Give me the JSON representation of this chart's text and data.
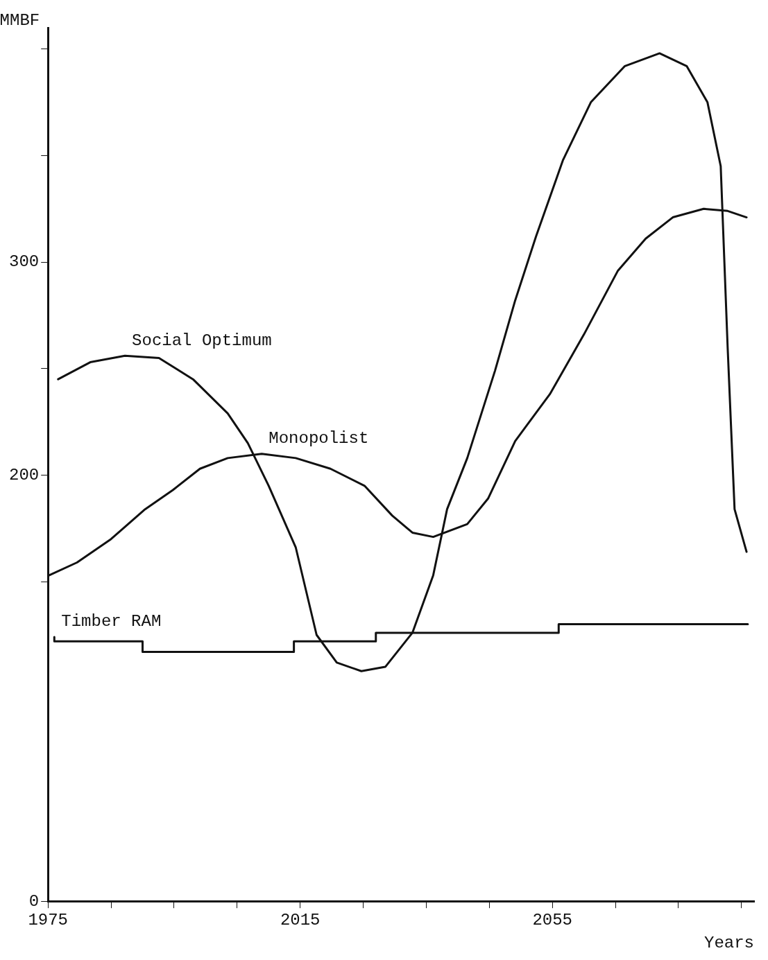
{
  "chart_data": {
    "type": "line",
    "ylabel": "MMBF",
    "xlabel": "Years",
    "xlim": [
      1975,
      2087
    ],
    "xticks": [
      1975,
      {
        "value": 1985,
        "label": null
      },
      {
        "value": 1995,
        "label": null
      },
      {
        "value": 2005,
        "label": null
      },
      2015,
      {
        "value": 2025,
        "label": null
      },
      {
        "value": 2035,
        "label": null
      },
      {
        "value": 2045,
        "label": null
      },
      2055,
      {
        "value": 2065,
        "label": null
      },
      {
        "value": 2075,
        "label": null
      },
      {
        "value": 2085,
        "label": null
      }
    ],
    "ylim": [
      0,
      410
    ],
    "yticks": [
      0,
      {
        "value": 150,
        "label": null
      },
      200,
      {
        "value": 250,
        "label": null
      },
      300,
      {
        "value": 350,
        "label": null
      },
      {
        "value": 400,
        "label": null
      }
    ],
    "grid": false,
    "legend": false,
    "marker": "none",
    "line_style": "solid",
    "series": [
      {
        "name": "Social Optimum",
        "color": "#111111",
        "x": [
          1976.6,
          1981.7,
          1987.2,
          1992.6,
          1998,
          2003.5,
          2006.7,
          2010,
          2014.3,
          2017.6,
          2020.8,
          2024.7,
          2028.5,
          2032.8,
          2036.1,
          2038.3,
          2041.5,
          2045.9,
          2049.1,
          2052.4,
          2056.7,
          2061.1,
          2066.5,
          2072,
          2076.3,
          2079.6,
          2081.7,
          2082.8,
          2083.9,
          2085.8
        ],
        "values": [
          245,
          253,
          256,
          255,
          245,
          229,
          215,
          195,
          166,
          125,
          112,
          108,
          110,
          126,
          153,
          184,
          208,
          249,
          282,
          312,
          348,
          375,
          392,
          398,
          392,
          375,
          345,
          260,
          184,
          164
        ]
      },
      {
        "name": "Monopolist",
        "color": "#111111",
        "x": [
          1975.2,
          1979.6,
          1985,
          1990.4,
          1994.8,
          1999.1,
          2003.5,
          2008.9,
          2014.3,
          2019.8,
          2025.2,
          2029.6,
          2032.8,
          2036.1,
          2041.5,
          2044.8,
          2049.1,
          2054.6,
          2060,
          2065.4,
          2069.8,
          2074.1,
          2079,
          2082.8,
          2085.8
        ],
        "values": [
          153,
          159,
          170,
          184,
          193,
          203,
          208,
          210,
          208,
          203,
          195,
          181,
          173,
          171,
          177,
          189,
          216,
          238,
          266,
          296,
          311,
          321,
          325,
          324,
          321
        ]
      },
      {
        "type": "step",
        "name": "Timber RAM",
        "color": "#111111",
        "x": [
          1976,
          1990,
          2014,
          2027,
          2056,
          2076,
          2086
        ],
        "values": [
          124,
          122,
          117,
          122,
          126,
          130,
          130
        ]
      }
    ]
  }
}
